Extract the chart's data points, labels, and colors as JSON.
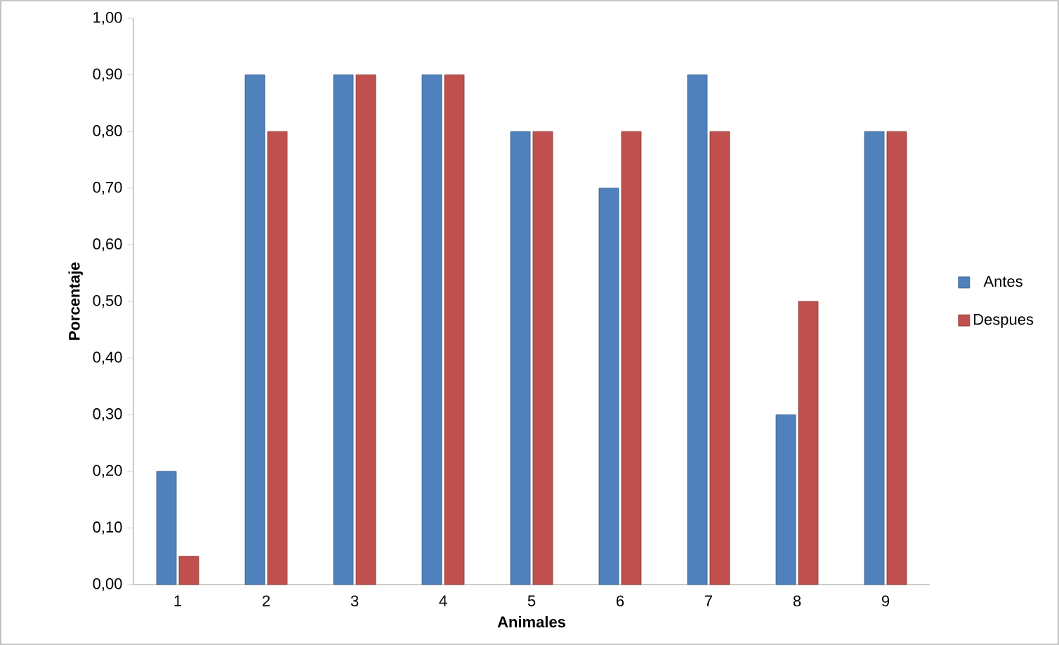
{
  "chart_data": {
    "type": "bar",
    "xlabel": "Animales",
    "ylabel": "Porcentaje",
    "categories": [
      "1",
      "2",
      "3",
      "4",
      "5",
      "6",
      "7",
      "8",
      "9"
    ],
    "series": [
      {
        "name": "Antes",
        "color": "#4f81bd",
        "values": [
          0.2,
          0.9,
          0.9,
          0.9,
          0.8,
          0.7,
          0.9,
          0.3,
          0.8
        ]
      },
      {
        "name": "Despues",
        "color": "#c0504d",
        "values": [
          0.05,
          0.8,
          0.9,
          0.9,
          0.8,
          0.8,
          0.8,
          0.5,
          0.8
        ]
      }
    ],
    "ylim": [
      0,
      1
    ],
    "yticks": [
      {
        "value": 0,
        "label": "0,00"
      },
      {
        "value": 0.1,
        "label": "0,10"
      },
      {
        "value": 0.2,
        "label": "0,20"
      },
      {
        "value": 0.3,
        "label": "0,30"
      },
      {
        "value": 0.4,
        "label": "0,40"
      },
      {
        "value": 0.5,
        "label": "0,50"
      },
      {
        "value": 0.6,
        "label": "0,60"
      },
      {
        "value": 0.7,
        "label": "0,70"
      },
      {
        "value": 0.8,
        "label": "0,80"
      },
      {
        "value": 0.9,
        "label": "0,90"
      },
      {
        "value": 1,
        "label": "1,00"
      }
    ],
    "grid": false,
    "legend": "right"
  }
}
